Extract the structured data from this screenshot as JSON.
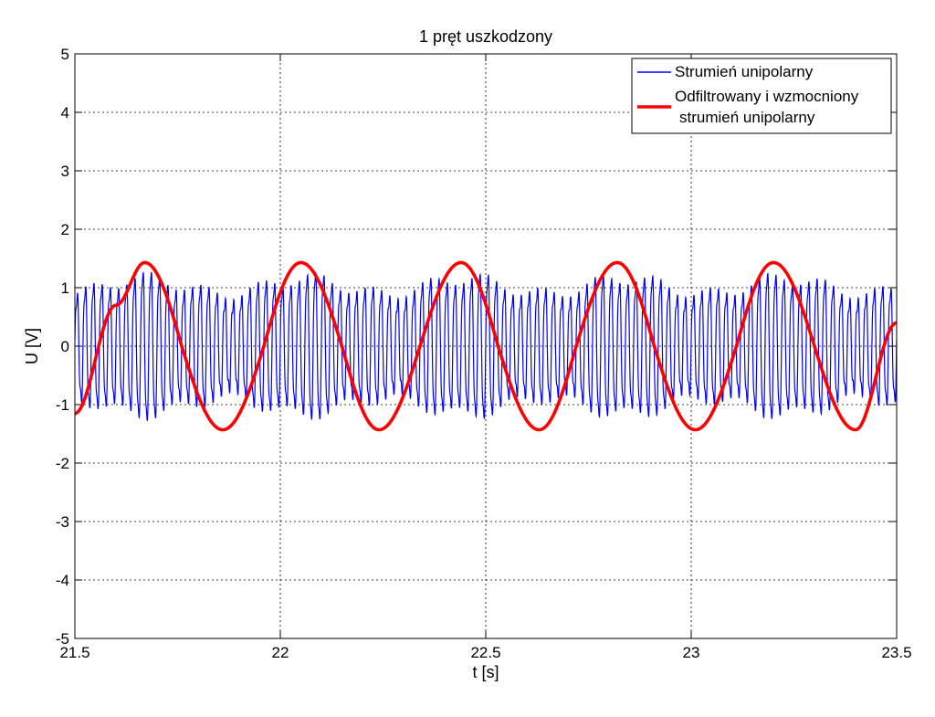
{
  "chart_data": {
    "type": "line",
    "title": "1 pręt uszkodzony",
    "xlabel": "t [s]",
    "ylabel": "U [V]",
    "xlim": [
      21.5,
      23.5
    ],
    "ylim": [
      -5,
      5
    ],
    "x_ticks": [
      21.5,
      22,
      22.5,
      23,
      23.5
    ],
    "x_tick_labels": [
      "21.5",
      "22",
      "22.5",
      "23",
      "23.5"
    ],
    "y_ticks": [
      -5,
      -4,
      -3,
      -2,
      -1,
      0,
      1,
      2,
      3,
      4,
      5
    ],
    "y_tick_labels": [
      "-5",
      "-4",
      "-3",
      "-2",
      "-1",
      "0",
      "1",
      "2",
      "3",
      "4",
      "5"
    ],
    "grid": true,
    "legend_position": "top-right",
    "series": [
      {
        "name": "Strumień unipolarny",
        "color": "#0000ff",
        "style": "thin",
        "description_of_signal": "",
        "carrier_frequency_hz": 50,
        "base_amplitude": 1.05,
        "envelope_amplitude": 0.25,
        "envelope_period_s": 0.39
      },
      {
        "name": "Odfiltrowany i wzmocniony strumień unipolarny",
        "legend_lines": [
          "Odfiltrowany i wzmocniony",
          "strumień unipolarny"
        ],
        "color": "#ff0000",
        "style": "thick",
        "x": [
          21.5,
          21.6,
          21.67,
          21.76,
          21.86,
          21.96,
          22.05,
          22.15,
          22.24,
          22.34,
          22.44,
          22.53,
          22.63,
          22.72,
          22.82,
          22.91,
          23.01,
          23.11,
          23.2,
          23.3,
          23.4,
          23.5
        ],
        "y": [
          -1.15,
          0.7,
          1.43,
          0.0,
          -1.43,
          0.0,
          1.43,
          0.0,
          -1.43,
          0.0,
          1.43,
          0.0,
          -1.43,
          0.0,
          1.43,
          0.0,
          -1.43,
          0.0,
          1.43,
          0.0,
          -1.43,
          0.4
        ]
      }
    ]
  }
}
